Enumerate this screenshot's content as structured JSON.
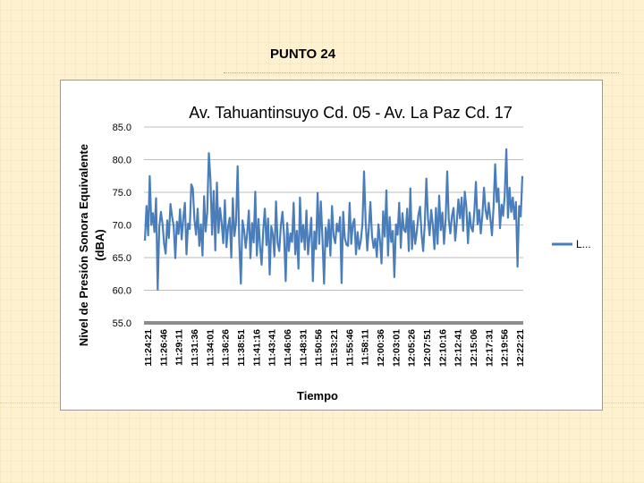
{
  "slide": {
    "title": "PUNTO 24"
  },
  "chart_data": {
    "type": "line",
    "title": "Av. Tahuantinsuyo Cd. 05 - Av. La Paz Cd. 17",
    "xlabel": "Tiempo",
    "ylabel_line1": "Nivel de Presión Sonora Equivalente",
    "ylabel_line2": "(dBA)",
    "ylim": [
      55,
      85
    ],
    "yticks": [
      "55.0",
      "60.0",
      "65.0",
      "70.0",
      "75.0",
      "80.0",
      "85.0"
    ],
    "grid": true,
    "legend_position": "right",
    "series_color": "#4a7ebb",
    "x_tick_labels": [
      "11:24:21",
      "11:26:46",
      "11:29:11",
      "11:31:36",
      "11:34:01",
      "11:36:26",
      "11:38:51",
      "11:41:16",
      "11:43:41",
      "11:46:06",
      "11:48:31",
      "11:50:56",
      "11:53:21",
      "11:55:46",
      "11:58:11",
      "12:00:36",
      "12:03:01",
      "12:05:26",
      "12:07:51",
      "12:10:16",
      "12:12:41",
      "12:15:06",
      "12:17:31",
      "12:19:56",
      "12:22:21"
    ],
    "series": [
      {
        "name": "L...",
        "sample_interval_s": 5,
        "start_time": "11:24:21",
        "values": [
          67.6,
          72.9,
          68.4,
          77.5,
          70.0,
          71.8,
          68.9,
          74.1,
          60.1,
          69.7,
          72.0,
          70.2,
          67.1,
          65.6,
          70.7,
          68.0,
          73.2,
          71.3,
          69.8,
          64.9,
          70.5,
          68.6,
          72.4,
          67.8,
          71.0,
          73.4,
          65.5,
          70.2,
          69.4,
          76.2,
          75.6,
          70.8,
          68.5,
          72.5,
          66.8,
          70.1,
          65.3,
          74.4,
          69.0,
          71.9,
          81.0,
          76.9,
          68.5,
          75.2,
          66.1,
          76.5,
          68.8,
          72.6,
          70.3,
          67.2,
          73.8,
          66.6,
          69.7,
          71.1,
          65.0,
          74.1,
          68.3,
          70.4,
          79.0,
          67.4,
          61.0,
          70.7,
          69.2,
          66.5,
          68.8,
          72.2,
          64.9,
          70.3,
          67.3,
          75.1,
          65.3,
          70.9,
          66.8,
          63.9,
          69.2,
          72.5,
          66.9,
          71.0,
          62.4,
          69.8,
          68.5,
          65.2,
          73.6,
          67.2,
          66.0,
          69.9,
          72.0,
          68.4,
          61.4,
          70.3,
          66.0,
          68.7,
          67.4,
          73.4,
          65.5,
          69.1,
          63.3,
          74.2,
          67.4,
          70.0,
          66.2,
          72.2,
          65.5,
          68.3,
          71.1,
          61.4,
          69.0,
          66.3,
          74.9,
          67.1,
          73.6,
          68.0,
          61.0,
          69.6,
          66.7,
          70.8,
          65.3,
          72.9,
          68.3,
          67.2,
          70.2,
          69.0,
          71.2,
          61.1,
          72.0,
          68.0,
          67.0,
          66.8,
          73.4,
          67.1,
          70.2,
          70.9,
          65.5,
          68.9,
          66.3,
          67.6,
          70.1,
          78.2,
          70.5,
          66.1,
          69.4,
          73.5,
          68.3,
          66.5,
          67.9,
          65.1,
          70.1,
          67.5,
          64.1,
          72.1,
          68.2,
          75.3,
          65.3,
          71.2,
          67.4,
          69.1,
          62.0,
          70.1,
          68.5,
          73.4,
          66.5,
          71.8,
          69.2,
          68.9,
          72.5,
          66.0,
          75.6,
          66.3,
          70.6,
          67.1,
          69.0,
          71.5,
          72.8,
          68.6,
          66.0,
          70.2,
          77.1,
          71.0,
          68.4,
          72.3,
          70.0,
          66.3,
          72.6,
          67.1,
          74.5,
          69.2,
          71.9,
          67.1,
          70.8,
          78.2,
          70.9,
          68.7,
          71.4,
          72.6,
          67.6,
          70.4,
          73.9,
          71.0,
          74.2,
          69.1,
          75.1,
          72.7,
          67.2,
          71.9,
          69.6,
          69.0,
          72.3,
          76.6,
          70.1,
          72.3,
          68.7,
          71.5,
          75.7,
          72.2,
          70.9,
          73.4,
          71.0,
          68.4,
          72.7,
          79.3,
          73.5,
          75.6,
          69.5,
          73.1,
          71.4,
          74.6,
          81.6,
          71.1,
          75.7,
          72.0,
          74.2,
          70.9,
          73.5,
          63.6,
          72.9,
          71.3,
          77.5
        ]
      }
    ]
  }
}
